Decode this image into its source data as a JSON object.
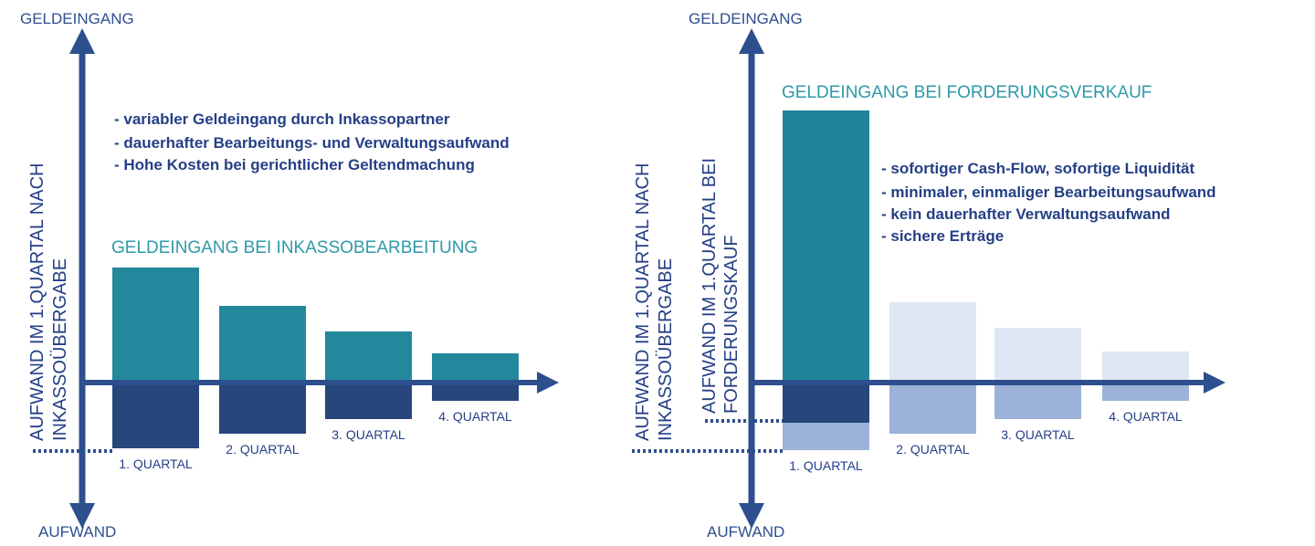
{
  "chart_data": [
    {
      "type": "bar",
      "categories": [
        "1. QUARTAL",
        "2. QUARTAL",
        "3. QUARTAL",
        "4. QUARTAL"
      ],
      "series": [
        {
          "role": "geldeingang",
          "values": [
            63,
            42,
            28,
            16
          ]
        },
        {
          "role": "aufwand",
          "values": [
            36,
            28,
            20,
            10
          ]
        }
      ],
      "ylim": [
        -60,
        190
      ],
      "y_top_label": "GELDEINGANG",
      "y_bottom_label": "AUFWAND",
      "series_title": "GELDEINGANG BEI INKASSOBEARBEITUNG",
      "side_label_lines": [
        "AUFWAND IM 1.QUARTAL NACH",
        "INKASSOÜBERGABE"
      ],
      "notes": [
        "- variabler Geldeingang durch Inkassopartner",
        "- dauerhafter Bearbeitungs- und Verwaltungsaufwand",
        "- Hohe Kosten bei gerichtlicher Geltendmachung"
      ],
      "colors": {
        "positive": "#23889b",
        "negative": "#26467c",
        "axis": "#2e4f8e",
        "label": "#2e9aa8",
        "text": "#253f86"
      }
    },
    {
      "type": "bar",
      "categories": [
        "1. QUARTAL",
        "2. QUARTAL",
        "3. QUARTAL",
        "4. QUARTAL"
      ],
      "series": [
        {
          "role": "geldeingang",
          "values": [
            149,
            44,
            30,
            17
          ]
        },
        {
          "role": "aufwand",
          "values": [
            22,
            28,
            20,
            10
          ]
        },
        {
          "role": "aufwand_verglichen",
          "values": [
            37,
            0,
            0,
            0
          ]
        }
      ],
      "ylim": [
        -60,
        190
      ],
      "y_top_label": "GELDEINGANG",
      "y_bottom_label": "AUFWAND",
      "series_title": "GELDEINGANG BEI FORDERUNGSVERKAUF",
      "side_label_lines_outer": [
        "AUFWAND IM 1.QUARTAL NACH",
        "INKASSOÜBERGABE"
      ],
      "side_label_lines_inner": [
        "AUFWAND IM 1.QUARTAL BEI",
        "FORDERUNGSKAUF"
      ],
      "notes": [
        "- sofortiger Cash-Flow, sofortige Liquidität",
        "- minimaler, einmaliger Bearbeitungsaufwand",
        "- kein dauerhafter Verwaltungsaufwand",
        "- sichere Erträge"
      ],
      "colors": {
        "positive": "#1f8499",
        "negative": "#26467c",
        "positive_faded": "#dfe6f3",
        "negative_faded": "#9cb2d9",
        "axis": "#2e4f8e",
        "label": "#2e9aa8",
        "text": "#253f86"
      }
    }
  ]
}
